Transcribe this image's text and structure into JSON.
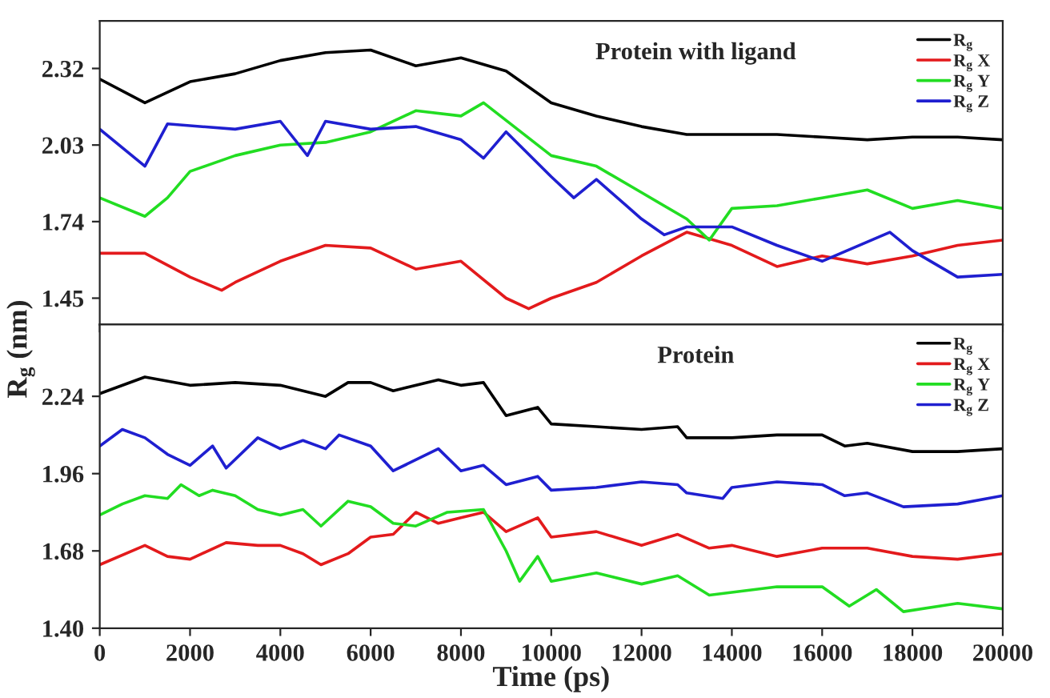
{
  "chart_data": [
    {
      "type": "line",
      "title": "Protein with ligand",
      "xlim": [
        0,
        20000
      ],
      "ylim": [
        1.35,
        2.5
      ],
      "yticks": [
        1.45,
        1.74,
        2.03,
        2.32
      ],
      "tick_labels": "y",
      "legend": "top right",
      "grid": false,
      "series": [
        {
          "name": "R$_{g}$",
          "color": "#000000",
          "x": [
            0,
            1000,
            2000,
            3000,
            4000,
            5000,
            6000,
            7000,
            8000,
            9000,
            10000,
            11000,
            12000,
            13000,
            14000,
            15000,
            16000,
            17000,
            18000,
            19000,
            20000
          ],
          "values": [
            2.28,
            2.19,
            2.27,
            2.3,
            2.35,
            2.38,
            2.39,
            2.33,
            2.36,
            2.31,
            2.19,
            2.14,
            2.1,
            2.07,
            2.07,
            2.07,
            2.06,
            2.05,
            2.06,
            2.06,
            2.05
          ]
        },
        {
          "name": "R$_{g}$ X",
          "color": "#e31a1c",
          "x": [
            0,
            1000,
            2000,
            2700,
            3000,
            4000,
            5000,
            6000,
            7000,
            8000,
            9000,
            9500,
            10000,
            11000,
            12000,
            13000,
            14000,
            15000,
            16000,
            17000,
            18000,
            19000,
            20000
          ],
          "values": [
            1.62,
            1.62,
            1.53,
            1.48,
            1.51,
            1.59,
            1.65,
            1.64,
            1.56,
            1.59,
            1.45,
            1.41,
            1.45,
            1.51,
            1.61,
            1.7,
            1.65,
            1.57,
            1.61,
            1.58,
            1.61,
            1.65,
            1.67
          ]
        },
        {
          "name": "R$_{g}$ Y",
          "color": "#22dd22",
          "x": [
            0,
            1000,
            1500,
            2000,
            3000,
            4000,
            5000,
            6000,
            7000,
            8000,
            8500,
            10000,
            11000,
            12000,
            13000,
            13500,
            14000,
            15000,
            16000,
            17000,
            18000,
            19000,
            20000
          ],
          "values": [
            1.83,
            1.76,
            1.83,
            1.93,
            1.99,
            2.03,
            2.04,
            2.08,
            2.16,
            2.14,
            2.19,
            1.99,
            1.95,
            1.85,
            1.75,
            1.67,
            1.79,
            1.8,
            1.83,
            1.86,
            1.79,
            1.82,
            1.79
          ]
        },
        {
          "name": "R$_{g}$ Z",
          "color": "#1f1fd0",
          "x": [
            0,
            1000,
            1500,
            3000,
            4000,
            4600,
            5000,
            6000,
            7000,
            8000,
            8500,
            9000,
            10000,
            10500,
            11000,
            12000,
            12500,
            13000,
            14000,
            15000,
            16000,
            17500,
            18000,
            19000,
            20000
          ],
          "values": [
            2.09,
            1.95,
            2.11,
            2.09,
            2.12,
            1.99,
            2.12,
            2.09,
            2.1,
            2.05,
            1.98,
            2.08,
            1.91,
            1.83,
            1.9,
            1.75,
            1.69,
            1.72,
            1.72,
            1.65,
            1.59,
            1.7,
            1.63,
            1.53,
            1.54
          ]
        }
      ]
    },
    {
      "type": "line",
      "title": "Protein",
      "xlabel": "Time (ps)",
      "ylabel": "R$_{g}$ (nm)",
      "xlim": [
        0,
        20000
      ],
      "xticks": [
        0,
        2000,
        4000,
        6000,
        8000,
        10000,
        12000,
        14000,
        16000,
        18000,
        20000
      ],
      "ylim": [
        1.4,
        2.5
      ],
      "yticks": [
        {
          "value": 1.4,
          "label": "1.40"
        },
        1.68,
        1.96,
        2.24
      ],
      "legend": "top right",
      "grid": false,
      "series": [
        {
          "name": "R$_{g}$",
          "color": "#000000",
          "x": [
            0,
            1000,
            2000,
            3000,
            4000,
            5000,
            5500,
            6000,
            6500,
            7500,
            8000,
            8500,
            9000,
            9700,
            10000,
            11000,
            12000,
            12800,
            13000,
            14000,
            15000,
            16000,
            16500,
            17000,
            18000,
            19000,
            20000
          ],
          "values": [
            2.25,
            2.31,
            2.28,
            2.29,
            2.28,
            2.24,
            2.29,
            2.29,
            2.26,
            2.3,
            2.28,
            2.29,
            2.17,
            2.2,
            2.14,
            2.13,
            2.12,
            2.13,
            2.09,
            2.09,
            2.1,
            2.1,
            2.06,
            2.07,
            2.04,
            2.04,
            2.05
          ]
        },
        {
          "name": "R$_{g}$ X",
          "color": "#e31a1c",
          "x": [
            0,
            1000,
            1500,
            2000,
            2800,
            3500,
            4000,
            4500,
            4900,
            5500,
            6000,
            6500,
            7000,
            7500,
            8000,
            8500,
            9000,
            9700,
            10000,
            11000,
            12000,
            12800,
            13500,
            14000,
            15000,
            16000,
            17000,
            18000,
            19000,
            20000
          ],
          "values": [
            1.63,
            1.7,
            1.66,
            1.65,
            1.71,
            1.7,
            1.7,
            1.67,
            1.63,
            1.67,
            1.73,
            1.74,
            1.82,
            1.78,
            1.8,
            1.82,
            1.75,
            1.8,
            1.73,
            1.75,
            1.7,
            1.74,
            1.69,
            1.7,
            1.66,
            1.69,
            1.69,
            1.66,
            1.65,
            1.67
          ]
        },
        {
          "name": "R$_{g}$ Y",
          "color": "#22dd22",
          "x": [
            0,
            500,
            1000,
            1500,
            1800,
            2200,
            2500,
            3000,
            3500,
            4000,
            4500,
            4900,
            5500,
            6000,
            6500,
            7000,
            7700,
            8500,
            9000,
            9300,
            9700,
            10000,
            11000,
            12000,
            12800,
            13500,
            15000,
            16000,
            16600,
            17200,
            17800,
            19000,
            20000
          ],
          "values": [
            1.81,
            1.85,
            1.88,
            1.87,
            1.92,
            1.88,
            1.9,
            1.88,
            1.83,
            1.81,
            1.83,
            1.77,
            1.86,
            1.84,
            1.78,
            1.77,
            1.82,
            1.83,
            1.68,
            1.57,
            1.66,
            1.57,
            1.6,
            1.56,
            1.59,
            1.52,
            1.55,
            1.55,
            1.48,
            1.54,
            1.46,
            1.49,
            1.47
          ]
        },
        {
          "name": "R$_{g}$ Z",
          "color": "#1f1fd0",
          "x": [
            0,
            500,
            1000,
            1500,
            2000,
            2500,
            2800,
            3500,
            4000,
            4500,
            5000,
            5300,
            6000,
            6500,
            7500,
            8000,
            8500,
            9000,
            9700,
            10000,
            11000,
            12000,
            12800,
            13000,
            13800,
            14000,
            15000,
            16000,
            16500,
            17000,
            17800,
            19000,
            20000
          ],
          "values": [
            2.06,
            2.12,
            2.09,
            2.03,
            1.99,
            2.06,
            1.98,
            2.09,
            2.05,
            2.08,
            2.05,
            2.1,
            2.06,
            1.97,
            2.05,
            1.97,
            1.99,
            1.92,
            1.95,
            1.9,
            1.91,
            1.93,
            1.92,
            1.89,
            1.87,
            1.91,
            1.93,
            1.92,
            1.88,
            1.89,
            1.84,
            1.85,
            1.88
          ]
        }
      ]
    }
  ]
}
